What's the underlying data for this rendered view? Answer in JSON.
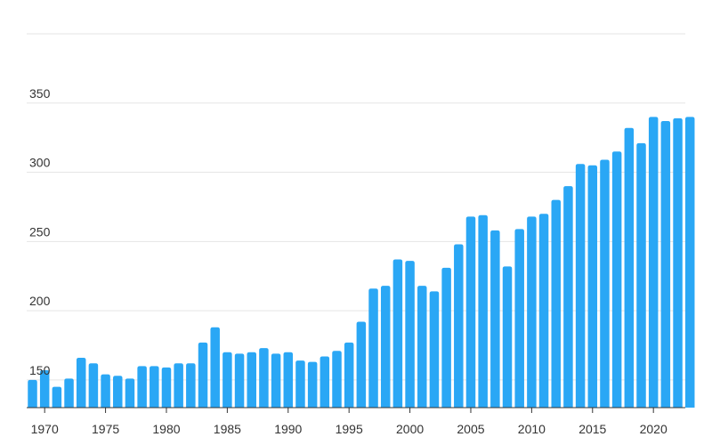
{
  "chart_data": {
    "type": "bar",
    "title": "",
    "xlabel": "",
    "ylabel": "",
    "bar_color": "#2aa7f5",
    "grid": true,
    "ylim": [
      130,
      400
    ],
    "y_ticks": [
      150,
      200,
      250,
      300,
      350,
      400
    ],
    "y_tick_labels": [
      "150",
      "200",
      "250",
      "300",
      "350",
      ""
    ],
    "x_ticks": [
      1970,
      1975,
      1980,
      1985,
      1990,
      1995,
      2000,
      2005,
      2010,
      2015,
      2020
    ],
    "x_tick_labels": [
      "1970",
      "1975",
      "1980",
      "1985",
      "1990",
      "1995",
      "2000",
      "2005",
      "2010",
      "2015",
      "2020"
    ],
    "categories": [
      1969,
      1970,
      1971,
      1972,
      1973,
      1974,
      1975,
      1976,
      1977,
      1978,
      1979,
      1980,
      1981,
      1982,
      1983,
      1984,
      1985,
      1986,
      1987,
      1988,
      1989,
      1990,
      1991,
      1992,
      1993,
      1994,
      1995,
      1996,
      1997,
      1998,
      1999,
      2000,
      2001,
      2002,
      2003,
      2004,
      2005,
      2006,
      2007,
      2008,
      2009,
      2010,
      2011,
      2012,
      2013,
      2014,
      2015,
      2016,
      2017,
      2018,
      2019,
      2020,
      2021,
      2022,
      2023
    ],
    "values": [
      150,
      157,
      145,
      151,
      166,
      162,
      154,
      153,
      151,
      160,
      160,
      159,
      162,
      162,
      177,
      188,
      170,
      169,
      170,
      173,
      169,
      170,
      164,
      163,
      167,
      171,
      177,
      192,
      216,
      218,
      237,
      236,
      218,
      214,
      231,
      248,
      268,
      269,
      258,
      232,
      259,
      268,
      270,
      280,
      290,
      306,
      305,
      309,
      315,
      332,
      321,
      340,
      337,
      339,
      340
    ]
  }
}
